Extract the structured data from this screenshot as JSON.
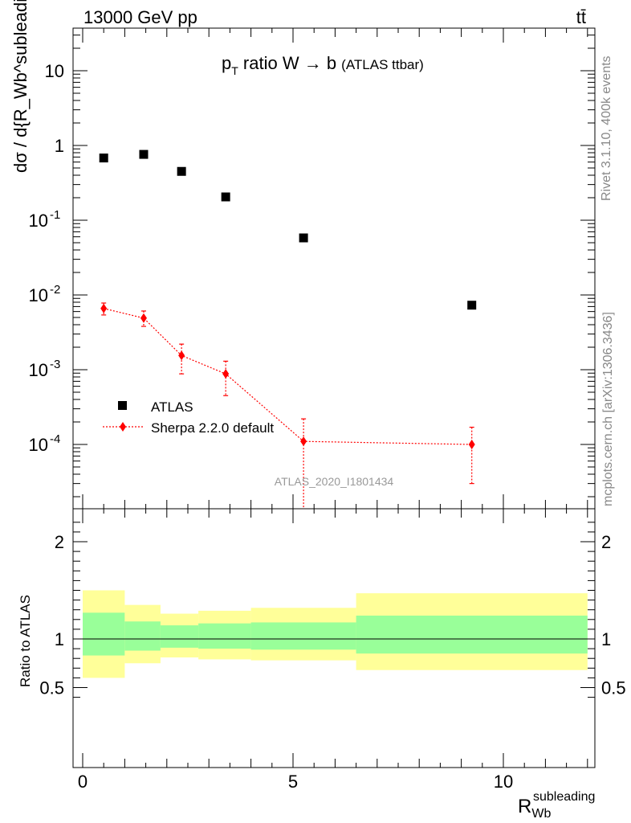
{
  "header": {
    "energy_label": "13000 GeV pp",
    "process_label": "tt̄"
  },
  "side_labels": {
    "rivet": "Rivet 3.1.10,  400k events",
    "mcplots": "mcplots.cern.ch [arXiv:1306.3436]"
  },
  "chart_data": [
    {
      "type": "scatter",
      "title": "p_T ratio W → b (ATLAS ttbar)",
      "title_main": "p",
      "title_sub": "T",
      "title_rest": " ratio W → b ",
      "title_small": "(ATLAS ttbar)",
      "ylabel": "dσ / d{R_Wb^subleading} [pb]",
      "yscale": "log",
      "ylim": [
        1.3e-05,
        40
      ],
      "xlim": [
        -0.4,
        12.3
      ],
      "y_tick_labels": [
        "10",
        "1",
        "10^-1",
        "10^-2",
        "10^-3",
        "10^-4"
      ],
      "analysis_label": "ATLAS_2020_I1801434",
      "legend_position": "bottom-left",
      "series": [
        {
          "name": "ATLAS",
          "color": "#000000",
          "marker": "square",
          "x": [
            0.5,
            1.45,
            2.35,
            3.4,
            5.25,
            9.25
          ],
          "y": [
            0.68,
            0.76,
            0.45,
            0.205,
            0.058,
            0.0073
          ]
        },
        {
          "name": "Sherpa 2.2.0 default",
          "color": "#ff0000",
          "marker": "diamond",
          "line": "dotted",
          "x": [
            0.5,
            1.45,
            2.35,
            3.4,
            5.25,
            9.25
          ],
          "y": [
            0.0066,
            0.0049,
            0.00155,
            0.00088,
            0.00011,
            0.0001
          ],
          "y_low": [
            0.0054,
            0.0038,
            0.00088,
            0.00045,
            1.3e-05,
            3e-05
          ],
          "y_high": [
            0.0078,
            0.0061,
            0.0022,
            0.0013,
            0.00022,
            0.00017
          ]
        }
      ]
    },
    {
      "type": "area",
      "ylabel": "Ratio to ATLAS",
      "xlabel": "R_Wb^subleading",
      "xlabel_main": "R",
      "xlabel_sub": "Wb",
      "xlabel_sup": "subleading",
      "ylim": [
        0.35,
        2.3
      ],
      "xlim": [
        -0.4,
        12.3
      ],
      "y_tick_labels": [
        "2",
        "1",
        "0.5"
      ],
      "x_tick_labels": [
        "0",
        "5",
        "10"
      ],
      "reference_line": 1,
      "bins": [
        {
          "x_lo": 0.0,
          "x_hi": 1.0,
          "inner_lo": 0.83,
          "inner_hi": 1.27,
          "outer_lo": 0.6,
          "outer_hi": 1.5
        },
        {
          "x_lo": 1.0,
          "x_hi": 1.85,
          "inner_lo": 0.88,
          "inner_hi": 1.18,
          "outer_lo": 0.75,
          "outer_hi": 1.35
        },
        {
          "x_lo": 1.85,
          "x_hi": 2.75,
          "inner_lo": 0.91,
          "inner_hi": 1.14,
          "outer_lo": 0.81,
          "outer_hi": 1.26
        },
        {
          "x_lo": 2.75,
          "x_hi": 4.0,
          "inner_lo": 0.9,
          "inner_hi": 1.16,
          "outer_lo": 0.79,
          "outer_hi": 1.29
        },
        {
          "x_lo": 4.0,
          "x_hi": 6.5,
          "inner_lo": 0.89,
          "inner_hi": 1.17,
          "outer_lo": 0.78,
          "outer_hi": 1.32
        },
        {
          "x_lo": 6.5,
          "x_hi": 12.0,
          "inner_lo": 0.85,
          "inner_hi": 1.24,
          "outer_lo": 0.68,
          "outer_hi": 1.47
        }
      ],
      "colors": {
        "inner": "#99ff99",
        "outer": "#ffff99"
      }
    }
  ]
}
